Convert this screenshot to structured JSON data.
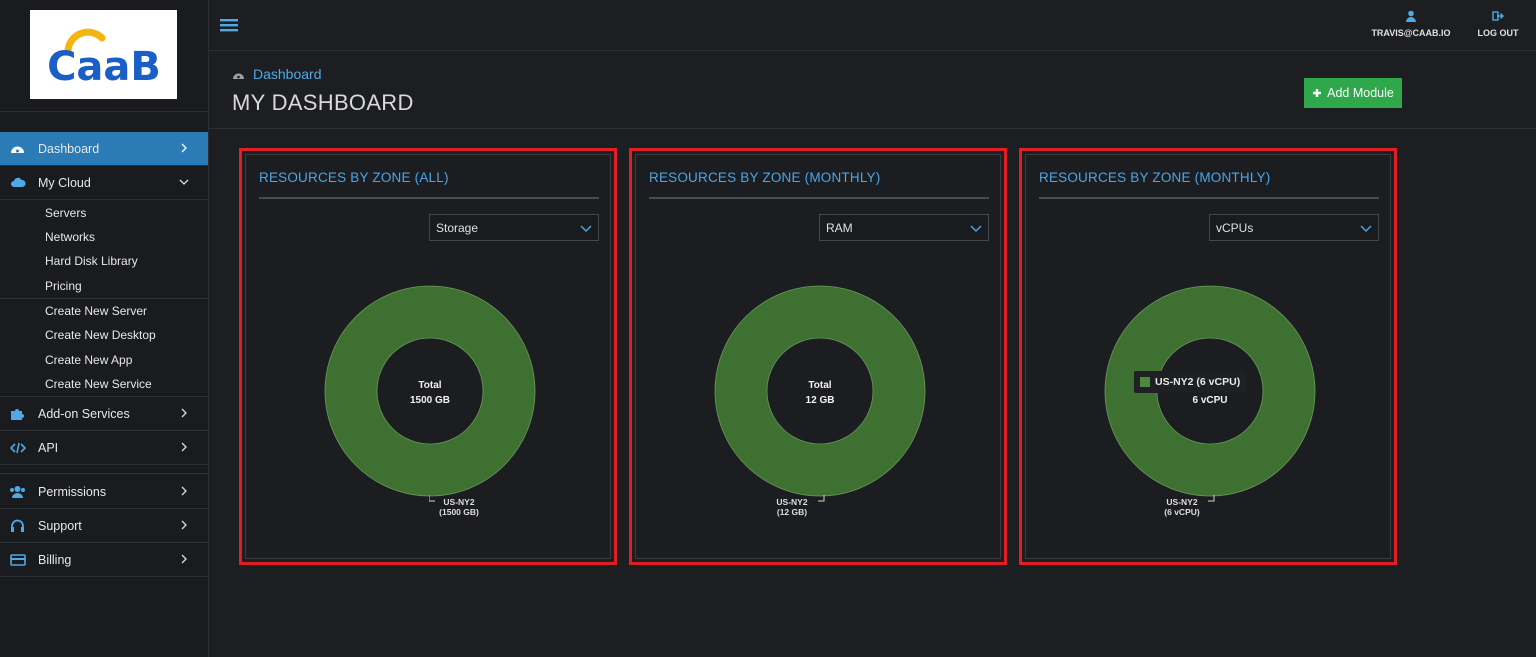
{
  "brand": {
    "logo_text": "CaaB",
    "logo_color": "#1a5fc5",
    "logo_accent": "#f5b50f"
  },
  "topbar": {
    "user_label": "TRAVIS@CAAB.IO",
    "logout_label": "LOG OUT"
  },
  "sidebar": {
    "dashboard": "Dashboard",
    "my_cloud": "My Cloud",
    "sub_items_1": [
      "Servers",
      "Networks",
      "Hard Disk Library",
      "Pricing"
    ],
    "sub_items_2": [
      "Create New Server",
      "Create New Desktop",
      "Create New App",
      "Create New Service"
    ],
    "addon": "Add-on Services",
    "api": "API",
    "permissions": "Permissions",
    "support": "Support",
    "billing": "Billing"
  },
  "header": {
    "breadcrumb": "Dashboard",
    "title": "MY DASHBOARD",
    "add_module": "Add Module"
  },
  "panels": [
    {
      "title": "RESOURCES BY ZONE (ALL)",
      "select": "Storage",
      "center_label": "Total",
      "center_value": "1500 GB",
      "zone": "US-NY2",
      "zone_value": "(1500 GB)",
      "tooltip": ""
    },
    {
      "title": "RESOURCES BY ZONE (MONTHLY)",
      "select": "RAM",
      "center_label": "Total",
      "center_value": "12 GB",
      "zone": "US-NY2",
      "zone_value": "(12 GB)",
      "tooltip": ""
    },
    {
      "title": "RESOURCES BY ZONE (MONTHLY)",
      "select": "vCPUs",
      "center_label": "",
      "center_value": "6 vCPU",
      "zone": "US-NY2",
      "zone_value": "(6 vCPU)",
      "tooltip": "US-NY2 (6 vCPU)"
    }
  ],
  "colors": {
    "accent": "#2a7bb6",
    "donut": "#3e7032",
    "highlight": "#e01e24",
    "button": "#2ea84a"
  }
}
